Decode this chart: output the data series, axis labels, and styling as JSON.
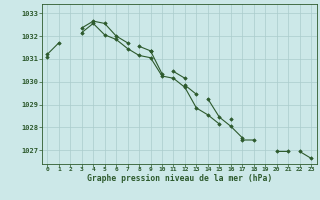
{
  "title": "Graphe pression niveau de la mer (hPa)",
  "bg_color": "#cce8e8",
  "grid_color": "#aacccc",
  "line_color": "#2d5a2d",
  "marker_color": "#2d5a2d",
  "x_ticks": [
    0,
    1,
    2,
    3,
    4,
    5,
    6,
    7,
    8,
    9,
    10,
    11,
    12,
    13,
    14,
    15,
    16,
    17,
    18,
    19,
    20,
    21,
    22,
    23
  ],
  "ylim": [
    1026.4,
    1033.4
  ],
  "yticks": [
    1027,
    1028,
    1029,
    1030,
    1031,
    1032,
    1033
  ],
  "series": [
    [
      1031.2,
      1031.7,
      null,
      1032.15,
      1032.55,
      1032.05,
      1031.85,
      1031.45,
      1031.15,
      1031.05,
      1030.25,
      1030.15,
      1029.75,
      1028.85,
      1028.55,
      1028.15,
      null,
      1027.45,
      1027.45,
      null,
      1026.95,
      1026.95,
      null,
      null
    ],
    [
      1031.1,
      null,
      null,
      1032.35,
      1032.65,
      1032.55,
      1032.0,
      1031.7,
      null,
      1031.35,
      1030.35,
      null,
      1029.85,
      1029.45,
      null,
      null,
      1028.35,
      null,
      null,
      null,
      null,
      null,
      null,
      null
    ],
    [
      null,
      null,
      null,
      null,
      null,
      null,
      null,
      null,
      1031.55,
      1031.35,
      null,
      1030.45,
      1030.15,
      null,
      1029.25,
      1028.45,
      1028.05,
      1027.55,
      null,
      null,
      null,
      null,
      1026.95,
      1026.65
    ]
  ]
}
